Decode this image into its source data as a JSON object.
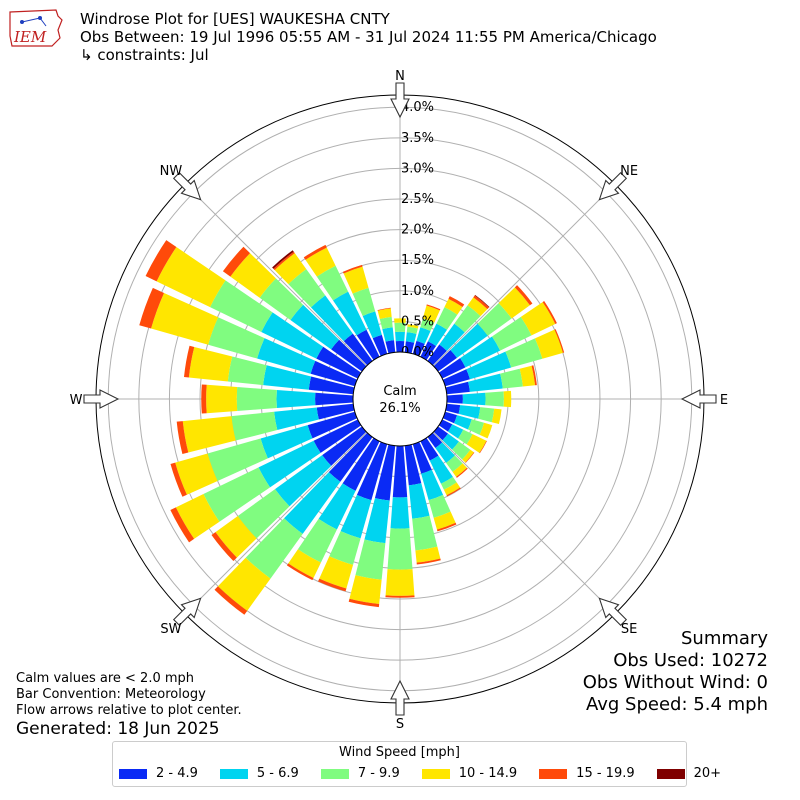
{
  "header": {
    "title": "Windrose Plot for [UES] WAUKESHA CNTY",
    "subtitle": "Obs Between: 19 Jul 1996 05:55 AM - 31 Jul 2024 11:55 PM America/Chicago",
    "constraints": "↳ constraints: Jul"
  },
  "logo": {
    "text": "IEM"
  },
  "notes": [
    "Calm values are < 2.0 mph",
    "Bar Convention: Meteorology",
    "Flow arrows relative to plot center."
  ],
  "generated": "Generated: 18 Jun 2025",
  "summary": {
    "title": "Summary",
    "obs_used": "Obs Used: 10272",
    "obs_without_wind": "Obs Without Wind: 0",
    "avg_speed": "Avg Speed: 5.4 mph"
  },
  "colors": {
    "bin_colors": [
      "#0a2af5",
      "#00d4f0",
      "#80fc80",
      "#ffe600",
      "#ff4a0a",
      "#7f0000"
    ],
    "grid": "#b0b0b0"
  },
  "chart_data": {
    "type": "windrose",
    "units": "%",
    "calm_label": "Calm",
    "calm_value": "26.1%",
    "compass_labels": [
      "N",
      "NE",
      "E",
      "SE",
      "S",
      "SW",
      "W",
      "NW"
    ],
    "radial_ticks": [
      "0.0%",
      "0.5%",
      "1.0%",
      "1.5%",
      "2.0%",
      "2.5%",
      "3.0%",
      "3.5%",
      "4.0%"
    ],
    "rmax": 4.2,
    "legend_title": "Wind Speed [mph]",
    "speed_bins": [
      "2 - 4.9",
      "5 - 6.9",
      "7 - 9.9",
      "10 - 14.9",
      "15 - 19.9",
      "20+"
    ],
    "directions_deg": [
      0,
      10,
      20,
      30,
      40,
      50,
      60,
      70,
      80,
      90,
      100,
      110,
      120,
      130,
      140,
      150,
      160,
      170,
      180,
      190,
      200,
      210,
      220,
      230,
      240,
      250,
      260,
      270,
      280,
      290,
      300,
      310,
      320,
      330,
      340,
      350
    ],
    "cumulative_percent": [
      [
        0.18,
        0.33,
        0.48,
        0.55,
        0.55,
        0.55
      ],
      [
        0.18,
        0.33,
        0.42,
        0.46,
        0.46,
        0.46
      ],
      [
        0.22,
        0.45,
        0.6,
        0.82,
        0.84,
        0.84
      ],
      [
        0.28,
        0.6,
        0.9,
        1.05,
        1.1,
        1.1
      ],
      [
        0.33,
        0.75,
        1.12,
        1.28,
        1.32,
        1.33
      ],
      [
        0.38,
        1.0,
        1.48,
        1.85,
        1.9,
        1.9
      ],
      [
        0.42,
        1.05,
        1.62,
        2.05,
        2.08,
        2.08
      ],
      [
        0.42,
        1.12,
        1.65,
        2.0,
        2.02,
        2.02
      ],
      [
        0.38,
        0.92,
        1.25,
        1.45,
        1.48,
        1.48
      ],
      [
        0.26,
        0.63,
        0.93,
        1.05,
        1.05,
        1.05
      ],
      [
        0.22,
        0.55,
        0.78,
        0.9,
        0.9,
        0.9
      ],
      [
        0.2,
        0.45,
        0.66,
        0.8,
        0.8,
        0.8
      ],
      [
        0.18,
        0.38,
        0.55,
        0.8,
        0.81,
        0.81
      ],
      [
        0.2,
        0.42,
        0.65,
        0.72,
        0.73,
        0.73
      ],
      [
        0.22,
        0.52,
        0.7,
        0.8,
        0.82,
        0.82
      ],
      [
        0.35,
        0.77,
        0.88,
        0.98,
        1.0,
        1.0
      ],
      [
        0.5,
        0.95,
        1.25,
        1.45,
        1.48,
        1.48
      ],
      [
        0.65,
        1.2,
        1.72,
        1.92,
        1.95,
        1.95
      ],
      [
        0.84,
        1.35,
        2.02,
        2.45,
        2.48,
        2.48
      ],
      [
        0.9,
        1.6,
        2.2,
        2.6,
        2.65,
        2.65
      ],
      [
        0.95,
        1.6,
        2.05,
        2.45,
        2.5,
        2.5
      ],
      [
        0.9,
        1.6,
        2.2,
        2.48,
        2.52,
        2.52
      ],
      [
        0.9,
        1.95,
        2.85,
        3.5,
        3.58,
        3.58
      ],
      [
        0.8,
        1.75,
        2.5,
        2.95,
        3.03,
        3.03
      ],
      [
        0.8,
        1.8,
        2.8,
        3.3,
        3.4,
        3.4
      ],
      [
        0.8,
        1.6,
        2.5,
        3.05,
        3.13,
        3.13
      ],
      [
        0.6,
        1.3,
        2.0,
        2.8,
        2.9,
        2.9
      ],
      [
        0.62,
        1.25,
        1.9,
        2.4,
        2.48,
        2.48
      ],
      [
        0.73,
        1.48,
        2.06,
        2.7,
        2.78,
        2.78
      ],
      [
        0.75,
        1.66,
        2.49,
        3.46,
        3.66,
        3.66
      ],
      [
        0.75,
        1.75,
        2.68,
        3.65,
        3.85,
        3.85
      ],
      [
        0.62,
        1.44,
        2.06,
        2.65,
        2.8,
        2.8
      ],
      [
        0.55,
        1.32,
        1.85,
        2.17,
        2.2,
        2.23
      ],
      [
        0.49,
        1.18,
        1.65,
        1.98,
        2.03,
        2.03
      ],
      [
        0.32,
        0.72,
        1.12,
        1.48,
        1.51,
        1.51
      ],
      [
        0.2,
        0.41,
        0.58,
        0.72,
        0.73,
        0.73
      ]
    ]
  }
}
